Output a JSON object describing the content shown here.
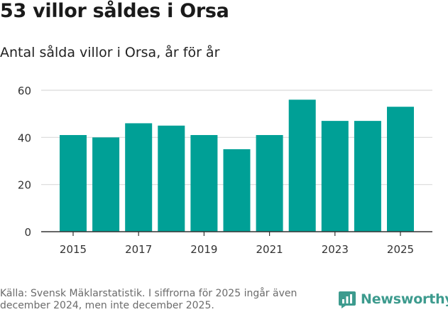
{
  "header": {
    "title": "53 villor såldes i Orsa",
    "subtitle": "Antal sålda villor i Orsa, år för år"
  },
  "footer": {
    "source": "Källa: Svensk Mäklarstatistik. I siffrorna för 2025 ingår även december 2024, men inte december 2025.",
    "brand": "Newsworthy"
  },
  "colors": {
    "bar": "#00a096",
    "grid": "#d9d9d9",
    "axis": "#333333",
    "brand": "#3d9b8e"
  },
  "chart_data": {
    "type": "bar",
    "title": "53 villor såldes i Orsa",
    "subtitle": "Antal sålda villor i Orsa, år för år",
    "xlabel": "",
    "ylabel": "",
    "categories": [
      "2015",
      "2016",
      "2017",
      "2018",
      "2019",
      "2020",
      "2021",
      "2022",
      "2023",
      "2024",
      "2025"
    ],
    "values": [
      41,
      40,
      46,
      45,
      41,
      35,
      41,
      56,
      47,
      47,
      53
    ],
    "x_tick_labels": [
      "2015",
      "2017",
      "2019",
      "2021",
      "2023",
      "2025"
    ],
    "y_ticks": [
      0,
      20,
      40,
      60
    ],
    "ylim": [
      0,
      60
    ],
    "grid": true
  }
}
